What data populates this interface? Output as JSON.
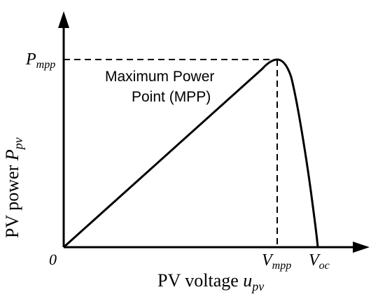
{
  "diagram": {
    "axes": {
      "origin_label": "0",
      "x_axis_label": "PV voltage",
      "x_axis_symbol": "u",
      "x_axis_subscript": "pv",
      "y_axis_label": "PV power",
      "y_axis_symbol": "P",
      "y_axis_subscript": "pv"
    },
    "markers": {
      "p_mpp_symbol": "P",
      "p_mpp_subscript": "mpp",
      "v_mpp_symbol": "V",
      "v_mpp_subscript": "mpp",
      "v_oc_symbol": "V",
      "v_oc_subscript": "oc"
    },
    "annotation": {
      "line1": "Maximum Power",
      "line2": "Point (MPP)"
    },
    "colors": {
      "ink": "#000000",
      "background": "#ffffff"
    }
  }
}
